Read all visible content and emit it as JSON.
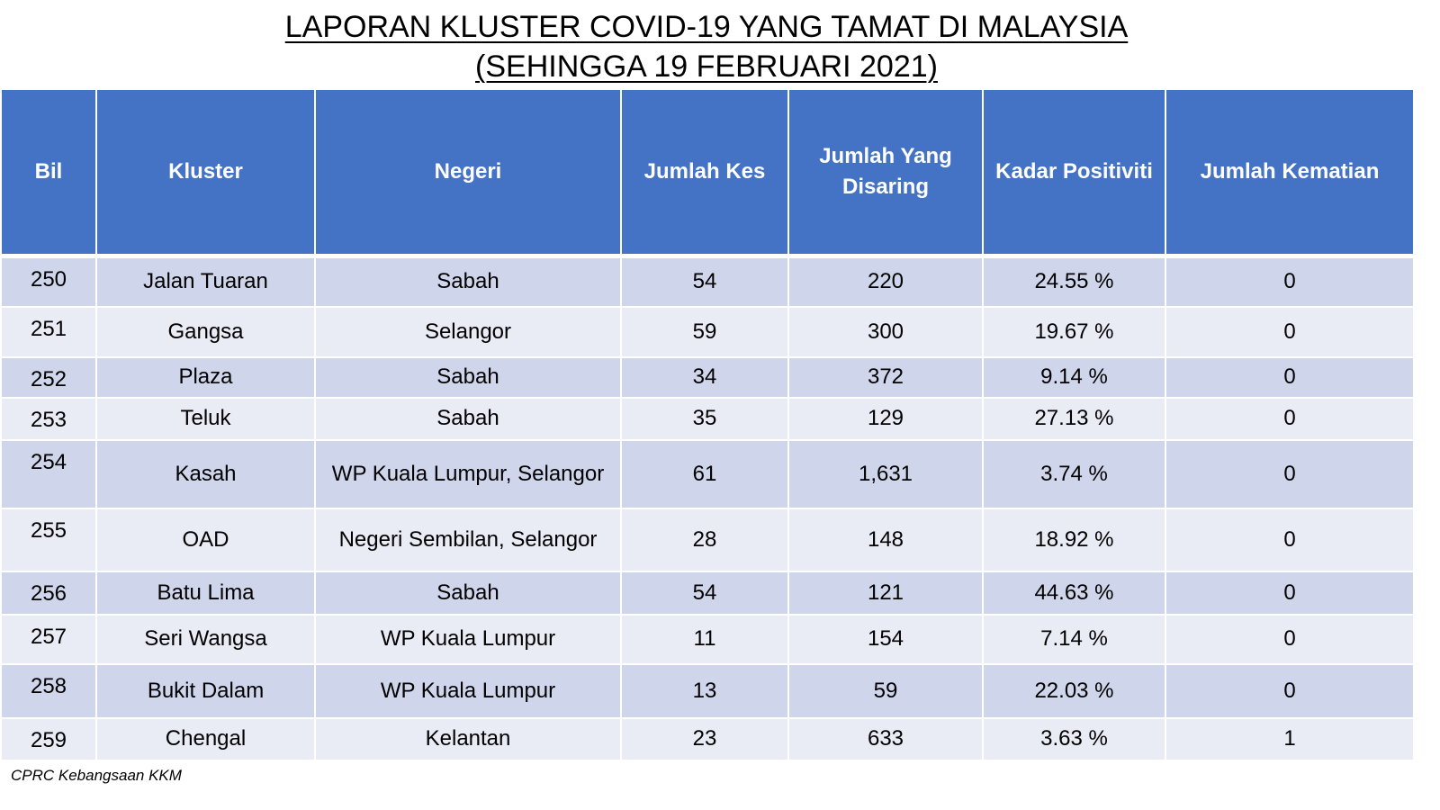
{
  "title": {
    "line1": "LAPORAN KLUSTER COVID-19 YANG TAMAT DI MALAYSIA",
    "line2": "(SEHINGGA 19 FEBRUARI 2021)"
  },
  "table": {
    "columns": [
      "Bil",
      "Kluster",
      "Negeri",
      "Jumlah Kes",
      "Jumlah Yang Disaring",
      "Kadar Positiviti",
      "Jumlah Kematian"
    ],
    "rows": [
      {
        "bil": "250",
        "kluster": "Jalan Tuaran",
        "negeri": "Sabah",
        "kes": "54",
        "disaring": "220",
        "positiviti": "24.55 %",
        "kematian": "0"
      },
      {
        "bil": "251",
        "kluster": "Gangsa",
        "negeri": "Selangor",
        "kes": "59",
        "disaring": "300",
        "positiviti": "19.67 %",
        "kematian": "0"
      },
      {
        "bil": "252",
        "kluster": "Plaza",
        "negeri": "Sabah",
        "kes": "34",
        "disaring": "372",
        "positiviti": "9.14 %",
        "kematian": "0"
      },
      {
        "bil": "253",
        "kluster": "Teluk",
        "negeri": "Sabah",
        "kes": "35",
        "disaring": "129",
        "positiviti": "27.13 %",
        "kematian": "0"
      },
      {
        "bil": "254",
        "kluster": "Kasah",
        "negeri": "WP Kuala Lumpur, Selangor",
        "kes": "61",
        "disaring": "1,631",
        "positiviti": "3.74 %",
        "kematian": "0"
      },
      {
        "bil": "255",
        "kluster": "OAD",
        "negeri": "Negeri Sembilan, Selangor",
        "kes": "28",
        "disaring": "148",
        "positiviti": "18.92 %",
        "kematian": "0"
      },
      {
        "bil": "256",
        "kluster": "Batu Lima",
        "negeri": "Sabah",
        "kes": "54",
        "disaring": "121",
        "positiviti": "44.63 %",
        "kematian": "0"
      },
      {
        "bil": "257",
        "kluster": "Seri Wangsa",
        "negeri": "WP Kuala Lumpur",
        "kes": "11",
        "disaring": "154",
        "positiviti": "7.14 %",
        "kematian": "0"
      },
      {
        "bil": "258",
        "kluster": "Bukit Dalam",
        "negeri": "WP Kuala Lumpur",
        "kes": "13",
        "disaring": "59",
        "positiviti": "22.03 %",
        "kematian": "0"
      },
      {
        "bil": "259",
        "kluster": "Chengal",
        "negeri": "Kelantan",
        "kes": "23",
        "disaring": "633",
        "positiviti": "3.63 %",
        "kematian": "1"
      }
    ]
  },
  "footer": {
    "source": "CPRC Kebangsaan KKM"
  },
  "colors": {
    "header_bg": "#4472c4",
    "row_odd": "#cfd5ea",
    "row_even": "#e9ebf5"
  }
}
